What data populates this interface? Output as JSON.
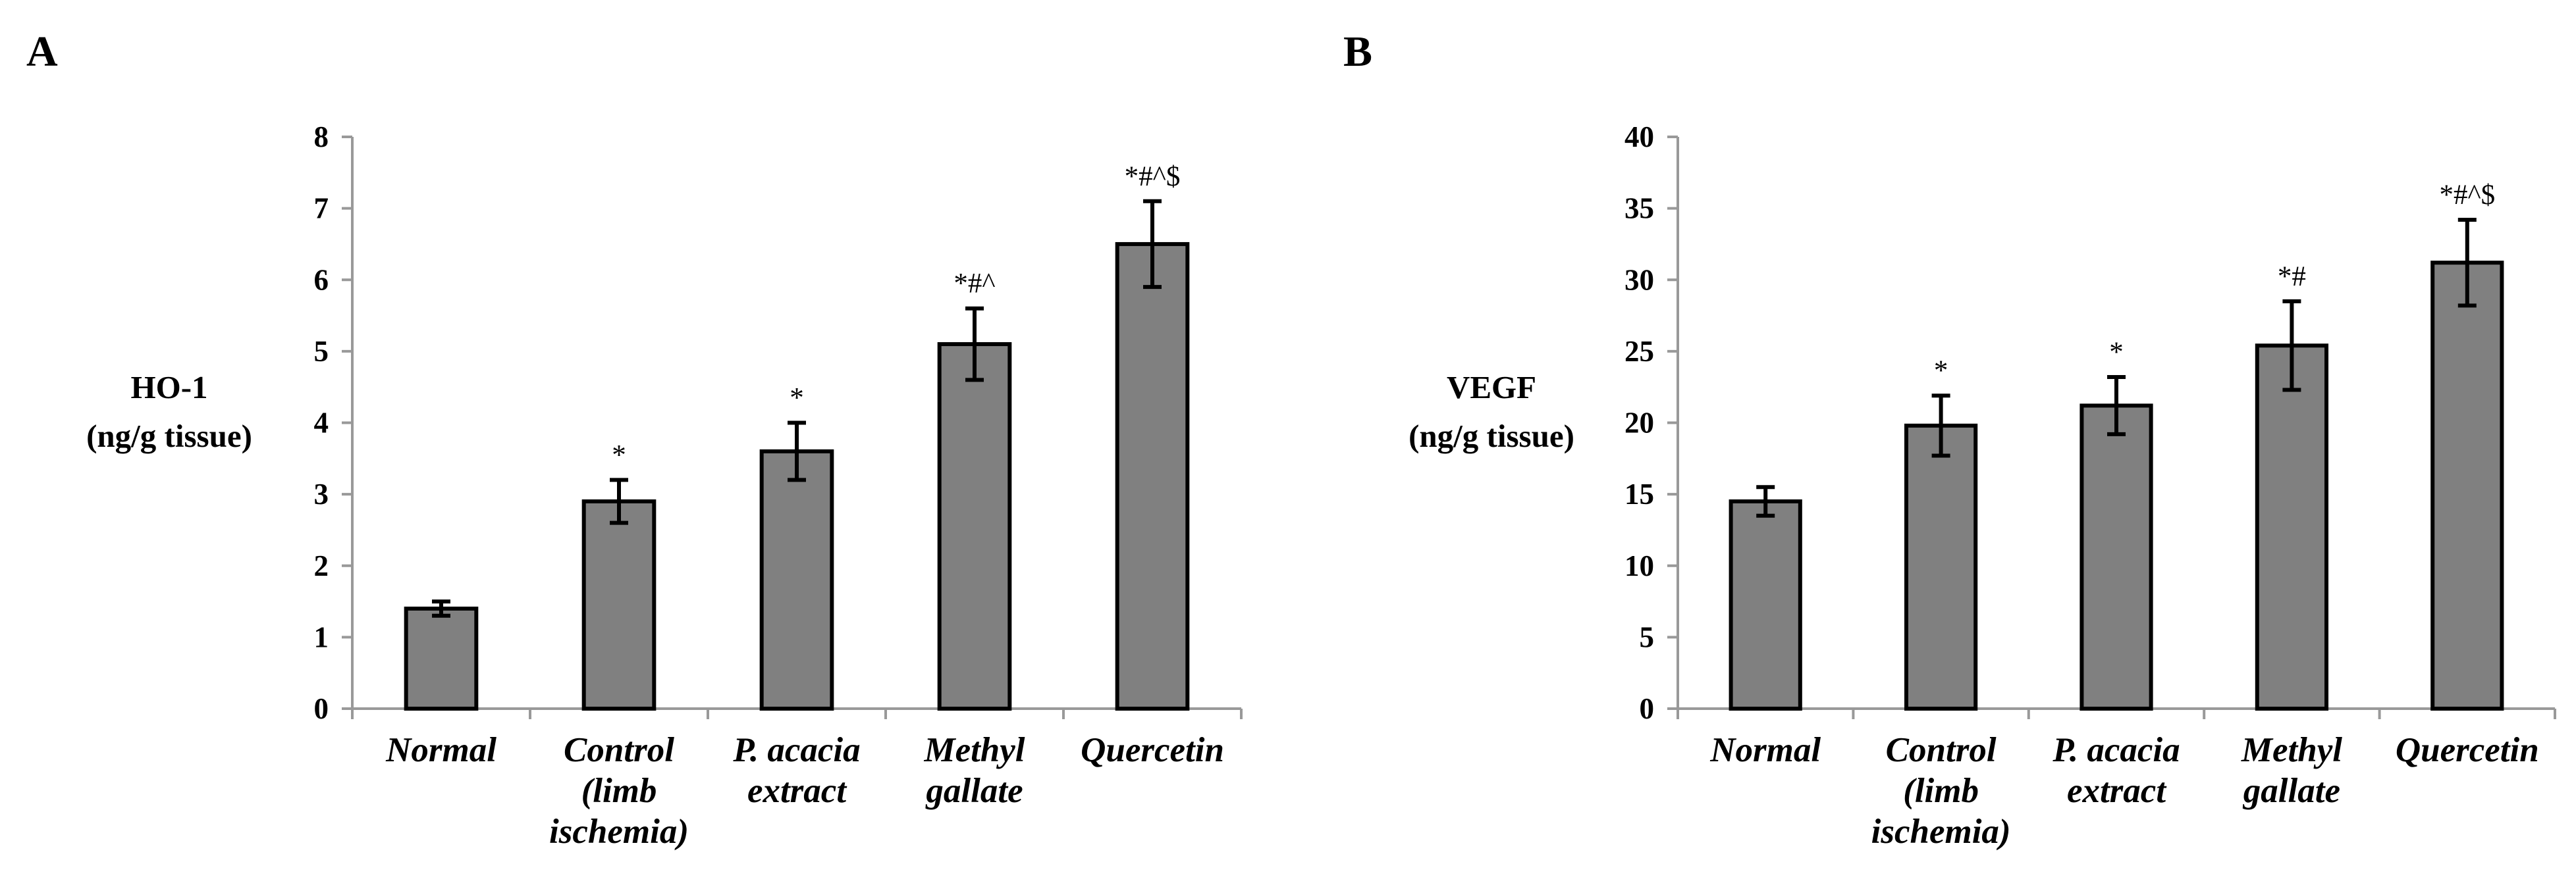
{
  "chart_data": [
    {
      "panel": "A",
      "type": "bar",
      "ylabel_lines": [
        "HO-1",
        "(ng/g tissue)"
      ],
      "categories": [
        [
          "Normal"
        ],
        [
          "Control",
          "(limb",
          "ischemia)"
        ],
        [
          "P. acacia",
          "extract"
        ],
        [
          "Methyl",
          "gallate"
        ],
        [
          "Quercetin"
        ]
      ],
      "values": [
        1.4,
        2.9,
        3.6,
        5.1,
        6.5
      ],
      "errors": [
        0.1,
        0.3,
        0.4,
        0.5,
        0.6
      ],
      "significance": [
        "",
        "*",
        "*",
        "*#^",
        "*#^$"
      ],
      "ylim": [
        0,
        8
      ],
      "ticks": [
        0,
        1,
        2,
        3,
        4,
        5,
        6,
        7,
        8
      ],
      "bar_color": "#808080"
    },
    {
      "panel": "B",
      "type": "bar",
      "ylabel_lines": [
        "VEGF",
        "(ng/g tissue)"
      ],
      "categories": [
        [
          "Normal"
        ],
        [
          "Control",
          "(limb",
          "ischemia)"
        ],
        [
          "P. acacia",
          "extract"
        ],
        [
          "Methyl",
          "gallate"
        ],
        [
          "Quercetin"
        ]
      ],
      "values": [
        14.5,
        19.8,
        21.2,
        25.4,
        31.2
      ],
      "errors": [
        1.0,
        2.1,
        2.0,
        3.1,
        3.0
      ],
      "significance": [
        "",
        "*",
        "*",
        "*#",
        "*#^$"
      ],
      "ylim": [
        0,
        40
      ],
      "ticks": [
        0,
        5,
        10,
        15,
        20,
        25,
        30,
        35,
        40
      ],
      "bar_color": "#808080"
    }
  ]
}
